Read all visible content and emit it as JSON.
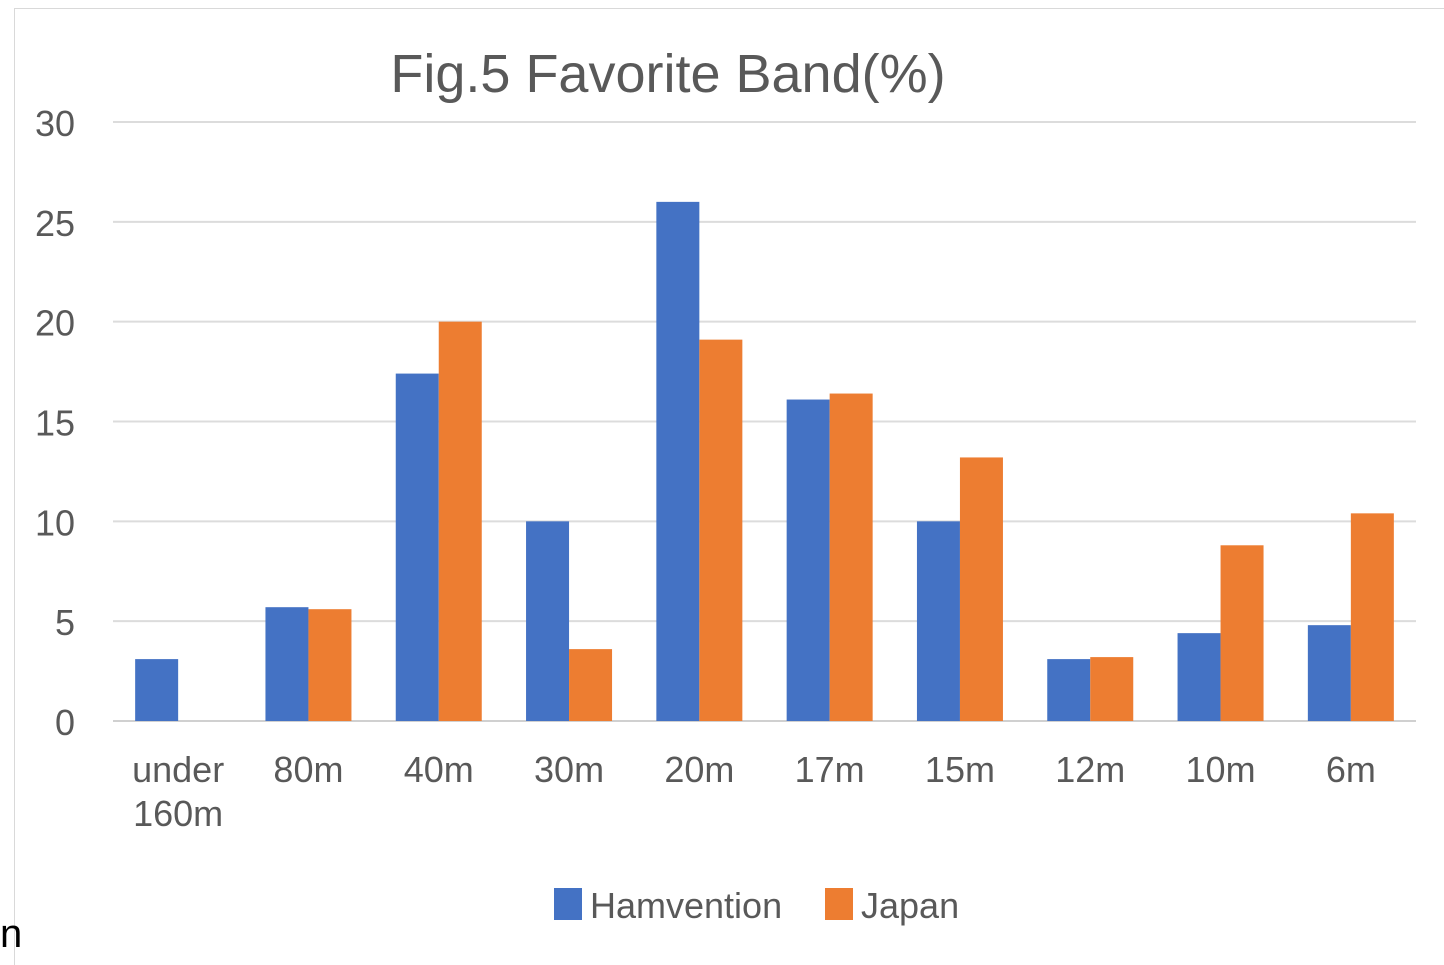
{
  "chart_data": {
    "type": "bar",
    "title": "Fig.5 Favorite Band(%)",
    "xlabel": "",
    "ylabel": "",
    "ylim": [
      0,
      30
    ],
    "yticks": [
      0,
      5,
      10,
      15,
      20,
      25,
      30
    ],
    "grid": true,
    "legend_position": "bottom",
    "categories": [
      [
        "under",
        "160m"
      ],
      [
        "80m"
      ],
      [
        "40m"
      ],
      [
        "30m"
      ],
      [
        "20m"
      ],
      [
        "17m"
      ],
      [
        "15m"
      ],
      [
        "12m"
      ],
      [
        "10m"
      ],
      [
        "6m"
      ]
    ],
    "series": [
      {
        "name": "Hamvention",
        "color": "#4472C4",
        "values": [
          3.1,
          5.7,
          17.4,
          10.0,
          26.0,
          16.1,
          10.0,
          3.1,
          4.4,
          4.8
        ]
      },
      {
        "name": "Japan",
        "color": "#ED7D31",
        "values": [
          0,
          5.6,
          20.0,
          3.6,
          19.1,
          16.4,
          13.2,
          3.2,
          8.8,
          10.4
        ]
      }
    ]
  },
  "stray_text": "n"
}
